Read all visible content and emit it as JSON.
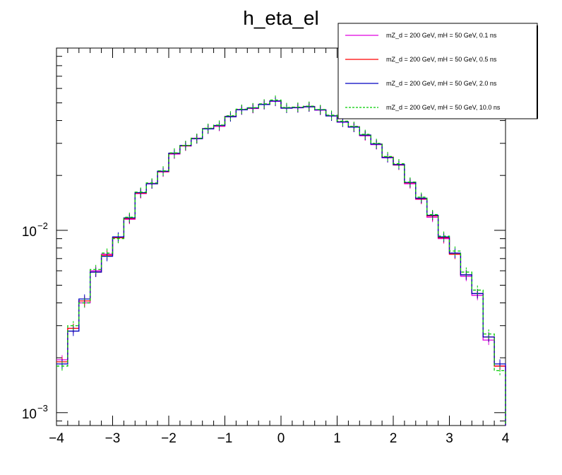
{
  "chart_data": {
    "type": "line",
    "title": "h_eta_el",
    "xlabel": "",
    "ylabel": "",
    "xlim": [
      -4,
      4
    ],
    "ylim": [
      0.00085,
      0.0999
    ],
    "yscale": "log",
    "grid": false,
    "legend_position": "top-right",
    "x_tick_labels": [
      "−4",
      "−3",
      "−2",
      "−1",
      "0",
      "1",
      "2",
      "3",
      "4"
    ],
    "y_tick_labels": [
      {
        "value": 0.01,
        "base": "10",
        "exp": "−2"
      },
      {
        "value": 0.001,
        "base": "10",
        "exp": "−3"
      }
    ],
    "bin_edges": [
      -4.0,
      -3.8,
      -3.6,
      -3.4,
      -3.2,
      -3.0,
      -2.8,
      -2.6,
      -2.4,
      -2.2,
      -2.0,
      -1.8,
      -1.6,
      -1.4,
      -1.2,
      -1.0,
      -0.8,
      -0.6,
      -0.4,
      -0.2,
      0.0,
      0.2,
      0.4,
      0.6,
      0.8,
      1.0,
      1.2,
      1.4,
      1.6,
      1.8,
      2.0,
      2.2,
      2.4,
      2.6,
      2.8,
      3.0,
      3.2,
      3.4,
      3.6,
      3.8,
      4.0
    ],
    "series": [
      {
        "name": "mZ_d = 200 GeV, mH = 50 GeV, 0.1 ns",
        "color": "#e000e0",
        "dash": "solid",
        "values": [
          0.00195,
          0.0029,
          0.004,
          0.006,
          0.0074,
          0.0091,
          0.0115,
          0.0159,
          0.0181,
          0.0209,
          0.0262,
          0.029,
          0.032,
          0.0362,
          0.0372,
          0.0422,
          0.046,
          0.0466,
          0.0492,
          0.051,
          0.047,
          0.047,
          0.0478,
          0.0456,
          0.0425,
          0.0392,
          0.037,
          0.033,
          0.0295,
          0.025,
          0.023,
          0.018,
          0.0148,
          0.0118,
          0.009,
          0.0074,
          0.0056,
          0.0044,
          0.0025,
          0.0018
        ]
      },
      {
        "name": "mZ_d = 200 GeV, mH = 50 GeV, 0.5 ns",
        "color": "#ff0000",
        "dash": "solid",
        "values": [
          0.0019,
          0.0029,
          0.0041,
          0.0059,
          0.0073,
          0.0091,
          0.0116,
          0.016,
          0.018,
          0.021,
          0.0264,
          0.0291,
          0.0318,
          0.036,
          0.0375,
          0.042,
          0.0458,
          0.0468,
          0.049,
          0.0512,
          0.0468,
          0.0472,
          0.0476,
          0.0458,
          0.0424,
          0.0394,
          0.0368,
          0.0332,
          0.0297,
          0.0252,
          0.0228,
          0.0182,
          0.0149,
          0.012,
          0.0091,
          0.0074,
          0.0057,
          0.0045,
          0.0026,
          0.0018
        ]
      },
      {
        "name": "mZ_d = 200 GeV, mH = 50 GeV, 2.0 ns",
        "color": "#0000c0",
        "dash": "solid",
        "values": [
          0.00185,
          0.0028,
          0.0042,
          0.0059,
          0.0072,
          0.0092,
          0.0117,
          0.0161,
          0.018,
          0.0211,
          0.0265,
          0.0292,
          0.0318,
          0.036,
          0.0376,
          0.042,
          0.0458,
          0.0469,
          0.049,
          0.0512,
          0.0468,
          0.0471,
          0.0476,
          0.0458,
          0.0424,
          0.0393,
          0.0368,
          0.0333,
          0.0297,
          0.0251,
          0.0229,
          0.0183,
          0.015,
          0.0121,
          0.0092,
          0.0075,
          0.0057,
          0.0045,
          0.0026,
          0.00185
        ]
      },
      {
        "name": "mZ_d = 200 GeV, mH = 50 GeV, 10.0 ns",
        "color": "#00cc00",
        "dash": "dashed",
        "values": [
          0.0018,
          0.003,
          0.004,
          0.0061,
          0.0075,
          0.009,
          0.0118,
          0.0162,
          0.0182,
          0.0212,
          0.0266,
          0.0292,
          0.032,
          0.0363,
          0.0378,
          0.0425,
          0.0462,
          0.0471,
          0.0494,
          0.0518,
          0.0472,
          0.0474,
          0.048,
          0.046,
          0.0428,
          0.0397,
          0.0372,
          0.0336,
          0.03,
          0.0254,
          0.0232,
          0.0184,
          0.0152,
          0.0122,
          0.0093,
          0.0077,
          0.0059,
          0.0047,
          0.0027,
          0.0017
        ]
      }
    ]
  }
}
